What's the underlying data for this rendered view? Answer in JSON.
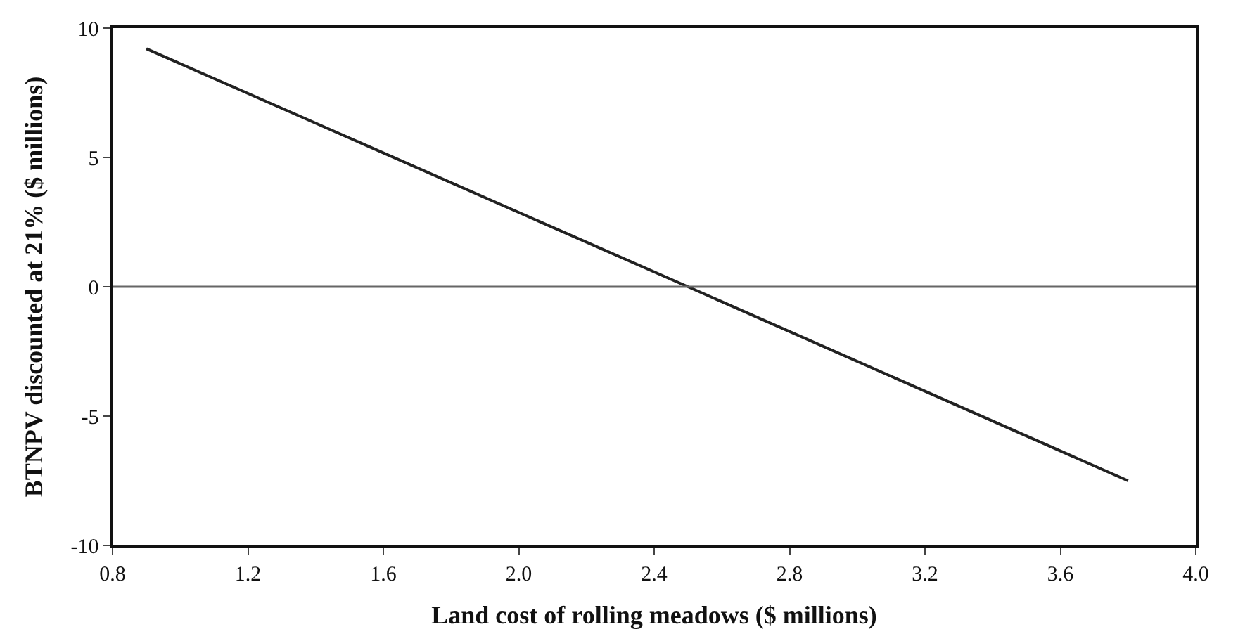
{
  "chart_data": {
    "type": "line",
    "xlabel": "Land cost of rolling meadows ($ millions)",
    "ylabel": "BTNPV discounted at 21% ($ millions)",
    "x": [
      0.9,
      2.5,
      3.8
    ],
    "series": [
      {
        "color": "#222222",
        "values": [
          9.2,
          0,
          -7.5
        ]
      }
    ],
    "xlim": [
      0.8,
      4.0
    ],
    "xticks": [
      0.8,
      1.2,
      1.6,
      {
        "value": 2,
        "label": "2.0"
      },
      2.4,
      2.8,
      3.2,
      3.6,
      {
        "value": 4,
        "label": "4.0"
      }
    ],
    "ylim": [
      -10,
      10
    ],
    "yticks": [
      -10,
      -5,
      0,
      5,
      10
    ],
    "ref_lines": [
      {
        "axis": "y",
        "value": 0,
        "color": "#666666"
      }
    ],
    "marker": "none",
    "line_style": "solid"
  }
}
